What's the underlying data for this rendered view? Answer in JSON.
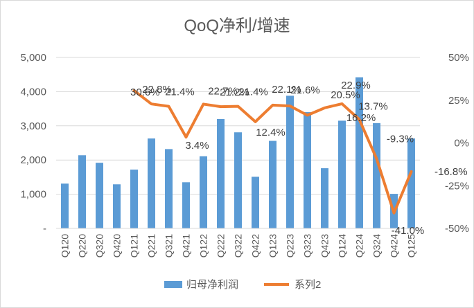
{
  "chart_data": {
    "type": "bar",
    "title": "QoQ净利/增速",
    "categories": [
      "Q120",
      "Q220",
      "Q320",
      "Q420",
      "Q121",
      "Q221",
      "Q321",
      "Q421",
      "Q122",
      "Q222",
      "Q322",
      "Q422",
      "Q123",
      "Q223",
      "Q323",
      "Q423",
      "Q124",
      "Q224",
      "Q324",
      "Q424",
      "Q125"
    ],
    "y_left": {
      "range": [
        0,
        5000
      ],
      "ticks": [
        0,
        1000,
        2000,
        3000,
        4000,
        5000
      ],
      "tick_labels": [
        "-",
        "1,000",
        "2,000",
        "3,000",
        "4,000",
        "5,000"
      ]
    },
    "y_right": {
      "range": [
        -50,
        50
      ],
      "ticks": [
        -50,
        -25,
        0,
        25,
        50
      ],
      "tick_labels": [
        "-50%",
        "-25%",
        "0%",
        "25%",
        "50%"
      ]
    },
    "grid": true,
    "legend_position": "bottom",
    "series": [
      {
        "name": "归母净利润",
        "type": "bar",
        "axis": "left",
        "color": "#5b9bd5",
        "values": [
          1310,
          2140,
          1920,
          1290,
          1720,
          2630,
          2320,
          1350,
          2110,
          3200,
          2810,
          1510,
          2560,
          3880,
          3400,
          1760,
          3150,
          4420,
          3080,
          1010,
          2630
        ]
      },
      {
        "name": "系列2",
        "type": "line",
        "axis": "right",
        "color": "#ed7d31",
        "values": [
          null,
          null,
          null,
          null,
          30.6,
          22.8,
          21.4,
          3.4,
          22.7,
          21.2,
          21.4,
          12.4,
          22.1,
          21.6,
          16.2,
          20.5,
          22.9,
          13.7,
          -9.3,
          -41.0,
          -16.8
        ],
        "labels": [
          null,
          null,
          null,
          null,
          "30.6%",
          "22.8%",
          "21.4%",
          "3.4%",
          "22.7%",
          "21.2%",
          "21.4%",
          "12.4%",
          "22.1%",
          "21.6%",
          "16.2%",
          "20.5%",
          "22.9%",
          "13.7%",
          "-9.3%",
          "-41.0%",
          "-16.8%"
        ]
      }
    ]
  },
  "colors": {
    "bar": "#5b9bd5",
    "line": "#ed7d31",
    "grid": "#d9d9d9",
    "text": "#595959"
  }
}
